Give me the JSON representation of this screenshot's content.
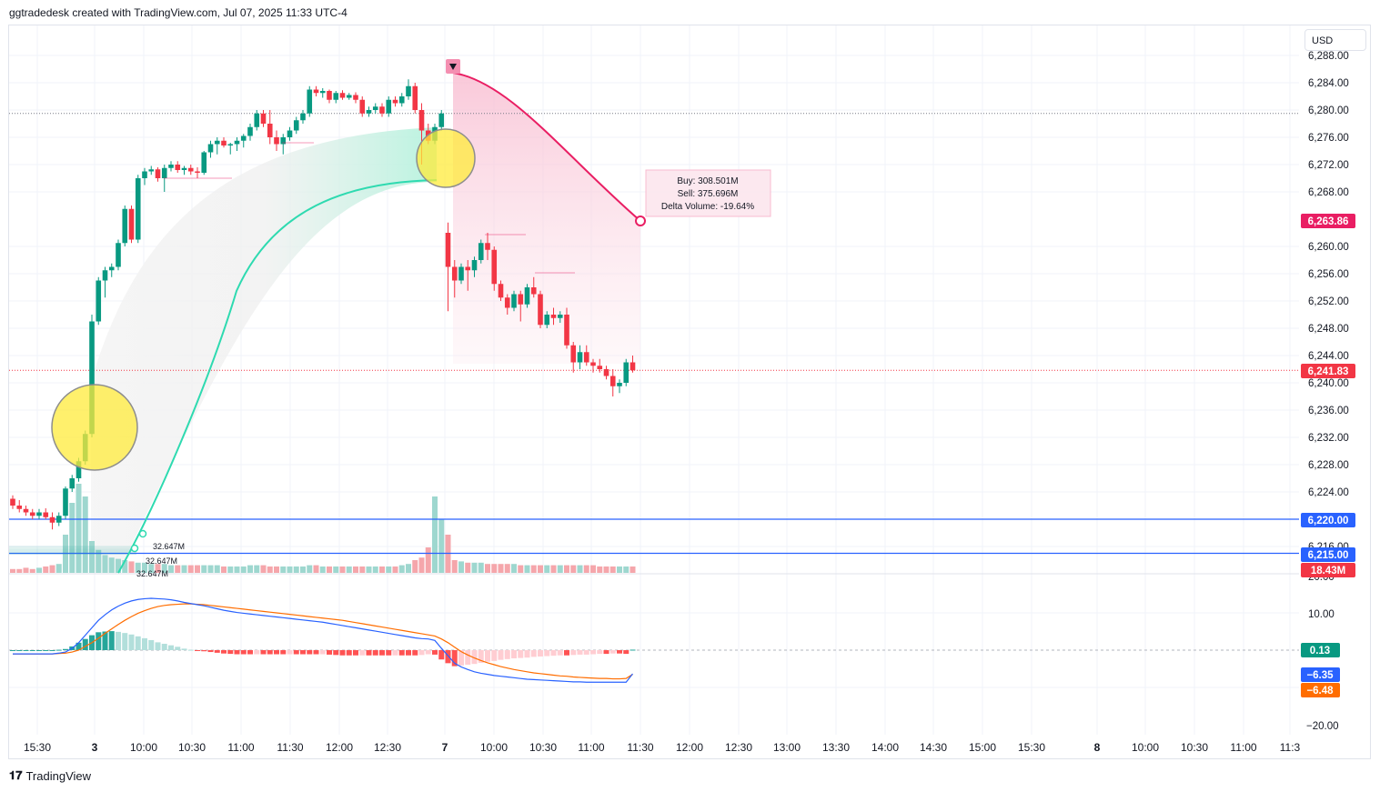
{
  "header": {
    "title": "ggtradedesk created with TradingView.com, Jul 07, 2025 11:33 UTC-4"
  },
  "currency": {
    "label": "USD"
  },
  "footer": {
    "brand": "TradingView"
  },
  "chart_data": [
    {
      "type": "candlestick",
      "title": "",
      "ylim": [
        6214,
        6290
      ],
      "y_ticks": [
        6288,
        6284,
        6280,
        6276,
        6272,
        6268,
        6260,
        6256,
        6252,
        6248,
        6244,
        6240,
        6236,
        6232,
        6228,
        6224,
        6216
      ],
      "x_ticks": [
        "15:30",
        "3",
        "10:00",
        "10:30",
        "11:00",
        "11:30",
        "12:00",
        "12:30",
        "7",
        "10:00",
        "10:30",
        "11:00",
        "11:30",
        "12:00",
        "12:30",
        "13:00",
        "13:30",
        "14:00",
        "14:30",
        "15:00",
        "15:30",
        "8",
        "10:00",
        "10:30",
        "11:00",
        "11:3"
      ],
      "price_labels": [
        {
          "value": "6,263.86",
          "color": "#e91e63"
        },
        {
          "value": "6,241.83",
          "color": "#f23645"
        },
        {
          "value": "6,220.00",
          "color": "#2962ff"
        },
        {
          "value": "6,215.00",
          "color": "#2962ff"
        },
        {
          "value": "18.43M",
          "color": "#f23645"
        }
      ],
      "horizontal_lines": [
        6220.0,
        6215.0
      ],
      "dotted_lines": [
        6279.5,
        6241.83
      ],
      "volume_labels": [
        "32.647M",
        "32.647M",
        "32.647M"
      ],
      "annotation": {
        "buy": "Buy: 308.501M",
        "sell": "Sell: 375.696M",
        "delta": "Delta Volume: -19.64%"
      },
      "candles": [
        [
          6223.0,
          6223.5,
          6221.5,
          6222.0
        ],
        [
          6222.0,
          6222.8,
          6221.0,
          6221.5
        ],
        [
          6221.5,
          6222.0,
          6220.5,
          6221.0
        ],
        [
          6221.0,
          6221.5,
          6220.0,
          6220.5
        ],
        [
          6220.5,
          6221.5,
          6220.0,
          6221.0
        ],
        [
          6221.0,
          6221.6,
          6220.0,
          6220.3
        ],
        [
          6220.3,
          6221.0,
          6218.5,
          6219.5
        ],
        [
          6219.5,
          6221.0,
          6219.0,
          6220.5
        ],
        [
          6220.5,
          6224.8,
          6220.0,
          6224.5
        ],
        [
          6224.5,
          6226.5,
          6224.0,
          6226.0
        ],
        [
          6226.0,
          6229.0,
          6225.5,
          6228.5
        ],
        [
          6228.5,
          6233.0,
          6228.0,
          6232.5
        ],
        [
          6232.5,
          6250.0,
          6232.0,
          6249.0
        ],
        [
          6249.0,
          6255.5,
          6248.5,
          6255.0
        ],
        [
          6255.0,
          6257.0,
          6252.5,
          6256.5
        ],
        [
          6256.5,
          6257.5,
          6255.5,
          6257.0
        ],
        [
          6257.0,
          6261.0,
          6256.5,
          6260.5
        ],
        [
          6260.5,
          6266.0,
          6260.0,
          6265.5
        ],
        [
          6265.5,
          6266.0,
          6260.5,
          6261.0
        ],
        [
          6261.0,
          6270.5,
          6260.5,
          6270.0
        ],
        [
          6270.0,
          6271.5,
          6269.0,
          6271.0
        ],
        [
          6271.0,
          6271.8,
          6270.5,
          6271.3
        ],
        [
          6271.3,
          6271.6,
          6269.5,
          6270.0
        ],
        [
          6270.0,
          6272.0,
          6268.0,
          6271.5
        ],
        [
          6271.5,
          6272.5,
          6271.0,
          6272.0
        ],
        [
          6272.0,
          6272.5,
          6270.8,
          6271.2
        ],
        [
          6271.2,
          6271.8,
          6270.5,
          6271.5
        ],
        [
          6271.5,
          6272.0,
          6270.5,
          6271.0
        ],
        [
          6271.0,
          6271.6,
          6270.0,
          6270.8
        ],
        [
          6270.8,
          6274.0,
          6270.5,
          6273.8
        ],
        [
          6273.8,
          6275.5,
          6273.0,
          6275.0
        ],
        [
          6275.0,
          6276.0,
          6273.5,
          6275.5
        ],
        [
          6275.5,
          6276.0,
          6274.5,
          6274.8
        ],
        [
          6274.8,
          6275.2,
          6273.5,
          6275.0
        ],
        [
          6275.0,
          6276.0,
          6274.0,
          6275.5
        ],
        [
          6275.5,
          6276.5,
          6274.5,
          6276.2
        ],
        [
          6276.2,
          6278.0,
          6275.5,
          6277.5
        ],
        [
          6277.5,
          6280.0,
          6277.0,
          6279.5
        ],
        [
          6279.5,
          6280.0,
          6277.5,
          6278.0
        ],
        [
          6278.0,
          6280.0,
          6275.0,
          6276.0
        ],
        [
          6276.0,
          6277.0,
          6274.0,
          6275.0
        ],
        [
          6275.0,
          6276.5,
          6273.5,
          6276.0
        ],
        [
          6276.0,
          6277.5,
          6275.5,
          6277.0
        ],
        [
          6277.0,
          6279.0,
          6276.5,
          6278.5
        ],
        [
          6278.5,
          6280.0,
          6278.0,
          6279.5
        ],
        [
          6279.5,
          6283.5,
          6279.0,
          6283.0
        ],
        [
          6283.0,
          6283.5,
          6282.0,
          6282.5
        ],
        [
          6282.5,
          6283.2,
          6281.8,
          6282.8
        ],
        [
          6282.8,
          6283.0,
          6281.0,
          6281.5
        ],
        [
          6281.5,
          6282.8,
          6281.0,
          6282.5
        ],
        [
          6282.5,
          6282.9,
          6281.5,
          6281.8
        ],
        [
          6281.8,
          6282.5,
          6281.5,
          6282.2
        ],
        [
          6282.2,
          6282.6,
          6281.0,
          6281.5
        ],
        [
          6281.5,
          6282.0,
          6279.0,
          6279.5
        ],
        [
          6279.5,
          6280.5,
          6279.0,
          6280.0
        ],
        [
          6280.0,
          6281.0,
          6279.5,
          6280.5
        ],
        [
          6280.5,
          6281.0,
          6279.0,
          6279.5
        ],
        [
          6279.5,
          6282.0,
          6279.0,
          6281.5
        ],
        [
          6281.5,
          6282.0,
          6280.5,
          6281.0
        ],
        [
          6281.0,
          6282.5,
          6280.5,
          6282.0
        ],
        [
          6282.0,
          6284.5,
          6281.5,
          6283.5
        ],
        [
          6283.5,
          6284.0,
          6279.5,
          6280.0
        ],
        [
          6280.0,
          6281.0,
          6272.0,
          6277.0
        ],
        [
          6277.0,
          6278.0,
          6275.0,
          6275.5
        ],
        [
          6275.5,
          6278.0,
          6275.0,
          6277.5
        ],
        [
          6277.5,
          6280.0,
          6277.0,
          6279.5
        ],
        [
          6262.0,
          6263.5,
          6250.5,
          6257.0
        ],
        [
          6257.0,
          6258.0,
          6252.5,
          6255.0
        ],
        [
          6255.0,
          6257.5,
          6254.5,
          6257.0
        ],
        [
          6257.0,
          6258.0,
          6253.5,
          6256.5
        ],
        [
          6256.5,
          6258.5,
          6255.5,
          6258.0
        ],
        [
          6258.0,
          6261.0,
          6257.5,
          6260.5
        ],
        [
          6260.5,
          6262.0,
          6258.0,
          6259.5
        ],
        [
          6259.5,
          6260.0,
          6253.5,
          6254.5
        ],
        [
          6254.5,
          6255.0,
          6252.0,
          6252.5
        ],
        [
          6252.5,
          6253.0,
          6250.0,
          6251.0
        ],
        [
          6251.0,
          6253.5,
          6250.5,
          6253.0
        ],
        [
          6253.0,
          6253.5,
          6249.0,
          6251.5
        ],
        [
          6251.5,
          6254.5,
          6251.0,
          6254.0
        ],
        [
          6254.0,
          6255.5,
          6252.5,
          6253.0
        ],
        [
          6253.0,
          6253.5,
          6248.0,
          6248.5
        ],
        [
          6248.5,
          6250.5,
          6248.0,
          6250.0
        ],
        [
          6250.0,
          6251.0,
          6248.5,
          6249.5
        ],
        [
          6249.5,
          6250.5,
          6248.8,
          6250.0
        ],
        [
          6250.0,
          6251.0,
          6245.0,
          6245.5
        ],
        [
          6245.5,
          6246.0,
          6241.5,
          6243.0
        ],
        [
          6243.0,
          6245.5,
          6242.0,
          6244.5
        ],
        [
          6244.5,
          6245.5,
          6242.5,
          6243.0
        ],
        [
          6243.0,
          6243.5,
          6241.5,
          6242.5
        ],
        [
          6242.5,
          6243.5,
          6241.5,
          6242.0
        ],
        [
          6242.0,
          6242.5,
          6240.5,
          6241.0
        ],
        [
          6241.0,
          6242.0,
          6238.0,
          6239.5
        ],
        [
          6239.5,
          6240.5,
          6238.5,
          6240.0
        ],
        [
          6240.0,
          6243.5,
          6239.5,
          6243.0
        ],
        [
          6243.0,
          6244.0,
          6241.5,
          6241.83
        ]
      ],
      "volume": [
        3,
        3,
        4,
        3,
        4,
        5,
        6,
        7,
        30,
        55,
        70,
        60,
        25,
        18,
        14,
        12,
        11,
        10,
        9,
        8,
        8,
        7,
        7,
        7,
        6,
        6,
        6,
        6,
        6,
        6,
        6,
        6,
        5,
        5,
        5,
        5,
        6,
        6,
        6,
        5,
        5,
        5,
        5,
        5,
        5,
        6,
        6,
        5,
        5,
        5,
        5,
        5,
        5,
        5,
        5,
        5,
        5,
        5,
        5,
        6,
        7,
        10,
        12,
        20,
        60,
        42,
        30,
        10,
        9,
        8,
        8,
        8,
        7,
        7,
        7,
        7,
        7,
        6,
        6,
        6,
        6,
        6,
        6,
        6,
        6,
        6,
        6,
        6,
        6,
        5,
        5,
        5,
        5,
        5,
        5
      ]
    },
    {
      "type": "macd",
      "ylim": [
        -20,
        20
      ],
      "y_ticks": [
        20,
        10,
        -20
      ],
      "value_labels": [
        {
          "value": "0.13",
          "color": "#089981"
        },
        {
          "value": "-6.35",
          "color": "#2962ff"
        },
        {
          "value": "-6.48",
          "color": "#ff6d00"
        }
      ],
      "macd": [
        -1,
        -1,
        -1,
        -1,
        -1,
        -1,
        -1,
        -0.8,
        -0.5,
        0.5,
        2,
        4,
        6,
        8,
        9.5,
        10.8,
        11.8,
        12.6,
        13.2,
        13.6,
        13.8,
        13.9,
        13.8,
        13.7,
        13.5,
        13.2,
        12.8,
        12.5,
        12.2,
        11.9,
        11.5,
        11.1,
        10.7,
        10.4,
        10.1,
        9.9,
        9.7,
        9.5,
        9.3,
        9.1,
        8.9,
        8.7,
        8.5,
        8.3,
        8.1,
        7.9,
        7.7,
        7.5,
        7.2,
        6.9,
        6.6,
        6.3,
        6.0,
        5.7,
        5.4,
        5.1,
        4.8,
        4.5,
        4.2,
        3.9,
        3.6,
        3.3,
        3.1,
        3.0,
        2.6,
        0.5,
        -1.5,
        -3.5,
        -4.5,
        -5.2,
        -5.8,
        -6.2,
        -6.5,
        -6.8,
        -7.0,
        -7.2,
        -7.4,
        -7.6,
        -7.8,
        -7.9,
        -8.0,
        -8.1,
        -8.2,
        -8.3,
        -8.4,
        -8.5,
        -8.5,
        -8.6,
        -8.6,
        -8.6,
        -8.6,
        -8.6,
        -8.6,
        -8.6,
        -6.35
      ],
      "signal": [
        -1,
        -1,
        -1,
        -1,
        -1,
        -1,
        -1,
        -0.9,
        -0.8,
        -0.5,
        0,
        1,
        2,
        3.2,
        4.5,
        5.7,
        6.9,
        8.0,
        9.0,
        9.9,
        10.6,
        11.2,
        11.7,
        12.0,
        12.2,
        12.3,
        12.4,
        12.4,
        12.3,
        12.2,
        12.0,
        11.8,
        11.6,
        11.4,
        11.2,
        11.0,
        10.8,
        10.6,
        10.4,
        10.2,
        10.0,
        9.8,
        9.6,
        9.4,
        9.2,
        9.0,
        8.8,
        8.6,
        8.4,
        8.2,
        8.0,
        7.7,
        7.4,
        7.1,
        6.8,
        6.5,
        6.2,
        5.9,
        5.6,
        5.3,
        5.0,
        4.7,
        4.4,
        4.1,
        3.8,
        3.0,
        2.0,
        0.8,
        -0.4,
        -1.3,
        -2.1,
        -2.8,
        -3.4,
        -3.9,
        -4.4,
        -4.8,
        -5.2,
        -5.5,
        -5.8,
        -6.1,
        -6.3,
        -6.5,
        -6.7,
        -6.9,
        -7.0,
        -7.2,
        -7.3,
        -7.4,
        -7.5,
        -7.6,
        -7.6,
        -7.7,
        -7.7,
        -7.6,
        -6.48
      ]
    }
  ]
}
